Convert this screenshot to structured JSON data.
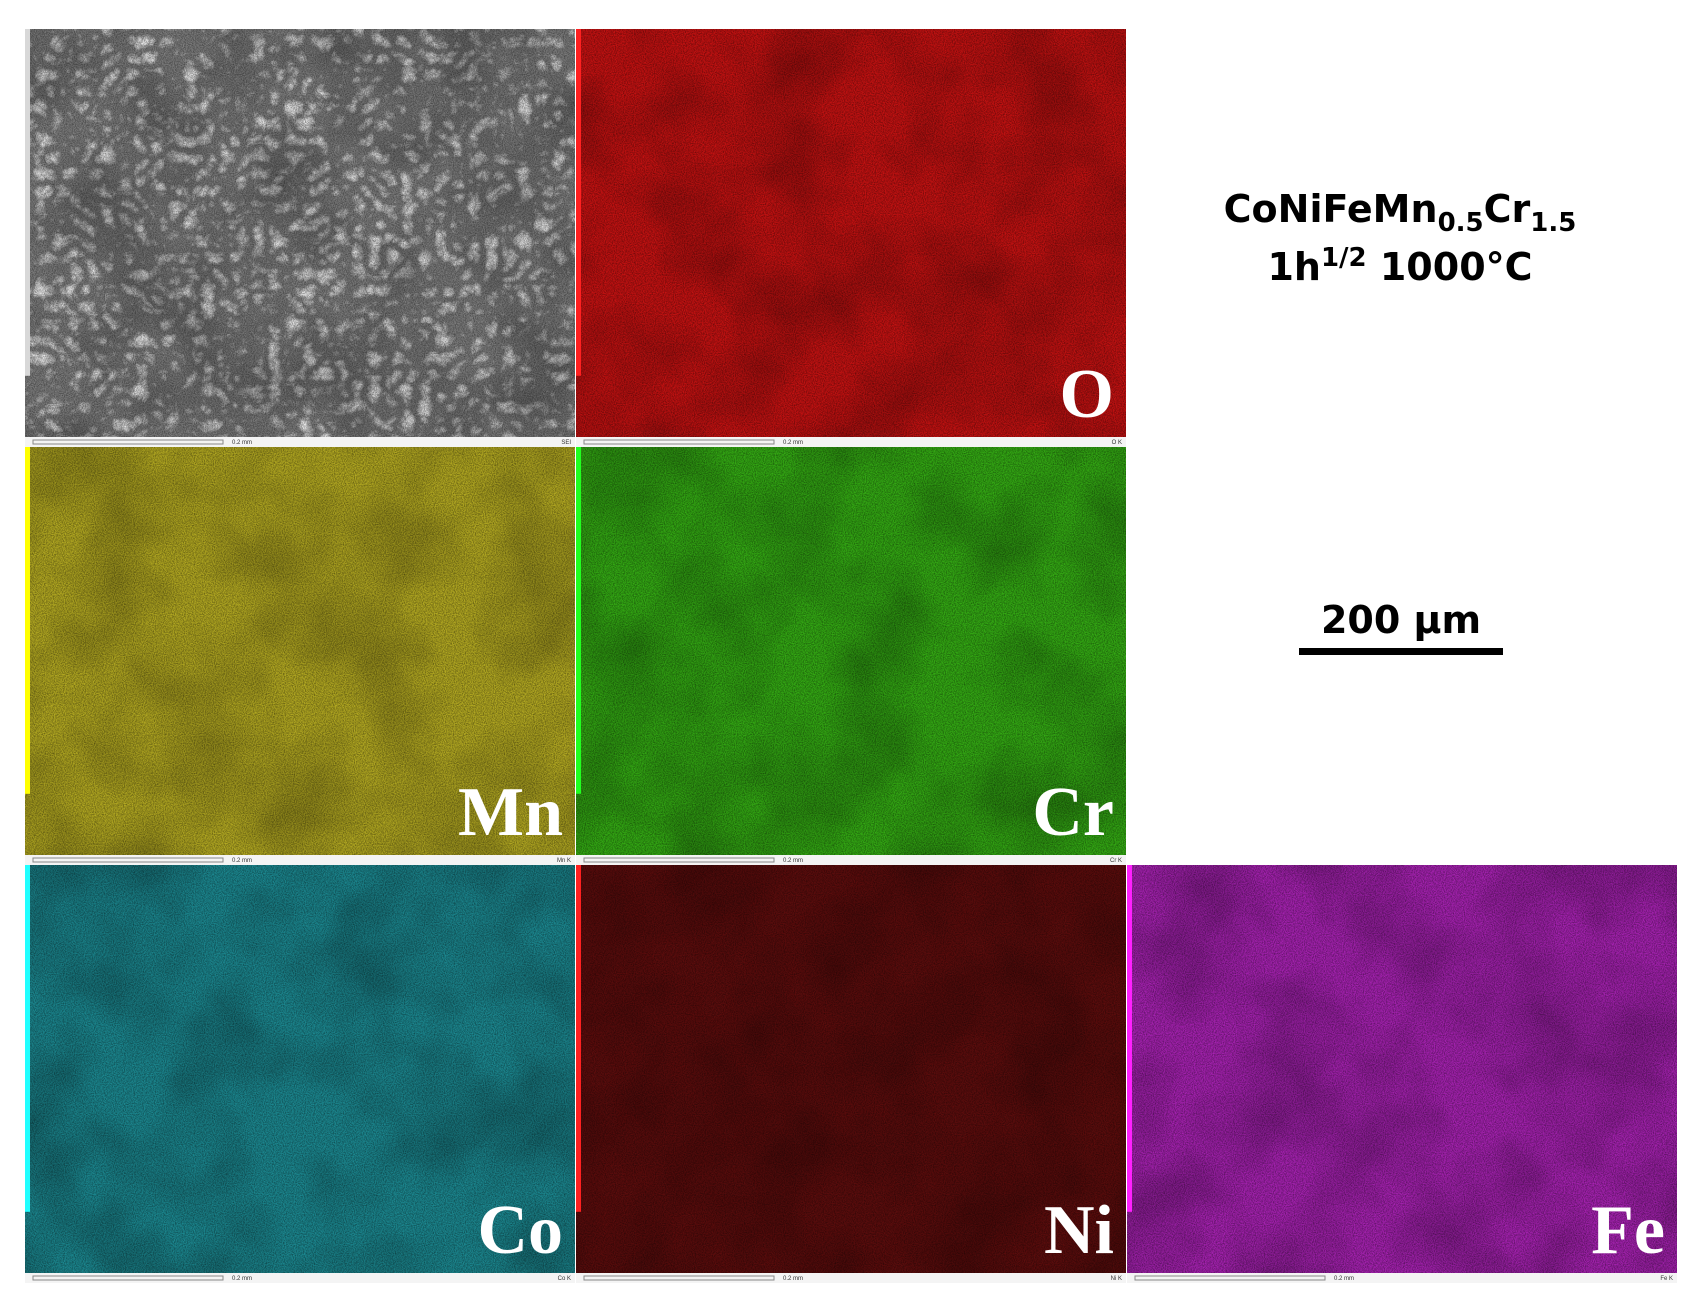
{
  "title": {
    "line1": [
      "CoNiFeMn",
      "0.5",
      "Cr",
      "1.5"
    ],
    "line2": [
      "1h",
      "1/2",
      " 1000°C"
    ]
  },
  "scale_bar": {
    "label": "200 µm"
  },
  "panels": [
    {
      "label": "",
      "detector": "SEI",
      "bar_text": "0.2 mm",
      "color": "#7c7c7c",
      "accent": "#d8d8d8"
    },
    {
      "label": "O",
      "detector": "O K",
      "bar_text": "0.2 mm",
      "color": "#c41212",
      "accent": "#ff2020"
    },
    {
      "label": "Mn",
      "detector": "Mn K",
      "bar_text": "0.2 mm",
      "color": "#b3a922",
      "accent": "#ffff00"
    },
    {
      "label": "Cr",
      "detector": "Cr K",
      "bar_text": "0.2 mm",
      "color": "#34aa14",
      "accent": "#20ff20"
    },
    {
      "label": "Co",
      "detector": "Co K",
      "bar_text": "0.2 mm",
      "color": "#1c8890",
      "accent": "#20ffff"
    },
    {
      "label": "Ni",
      "detector": "Ni K",
      "bar_text": "0.2 mm",
      "color": "#5c0d0d",
      "accent": "#ff2020"
    },
    {
      "label": "Fe",
      "detector": "Fe K",
      "bar_text": "0.2 mm",
      "color": "#a522b0",
      "accent": "#ff20ff"
    }
  ]
}
